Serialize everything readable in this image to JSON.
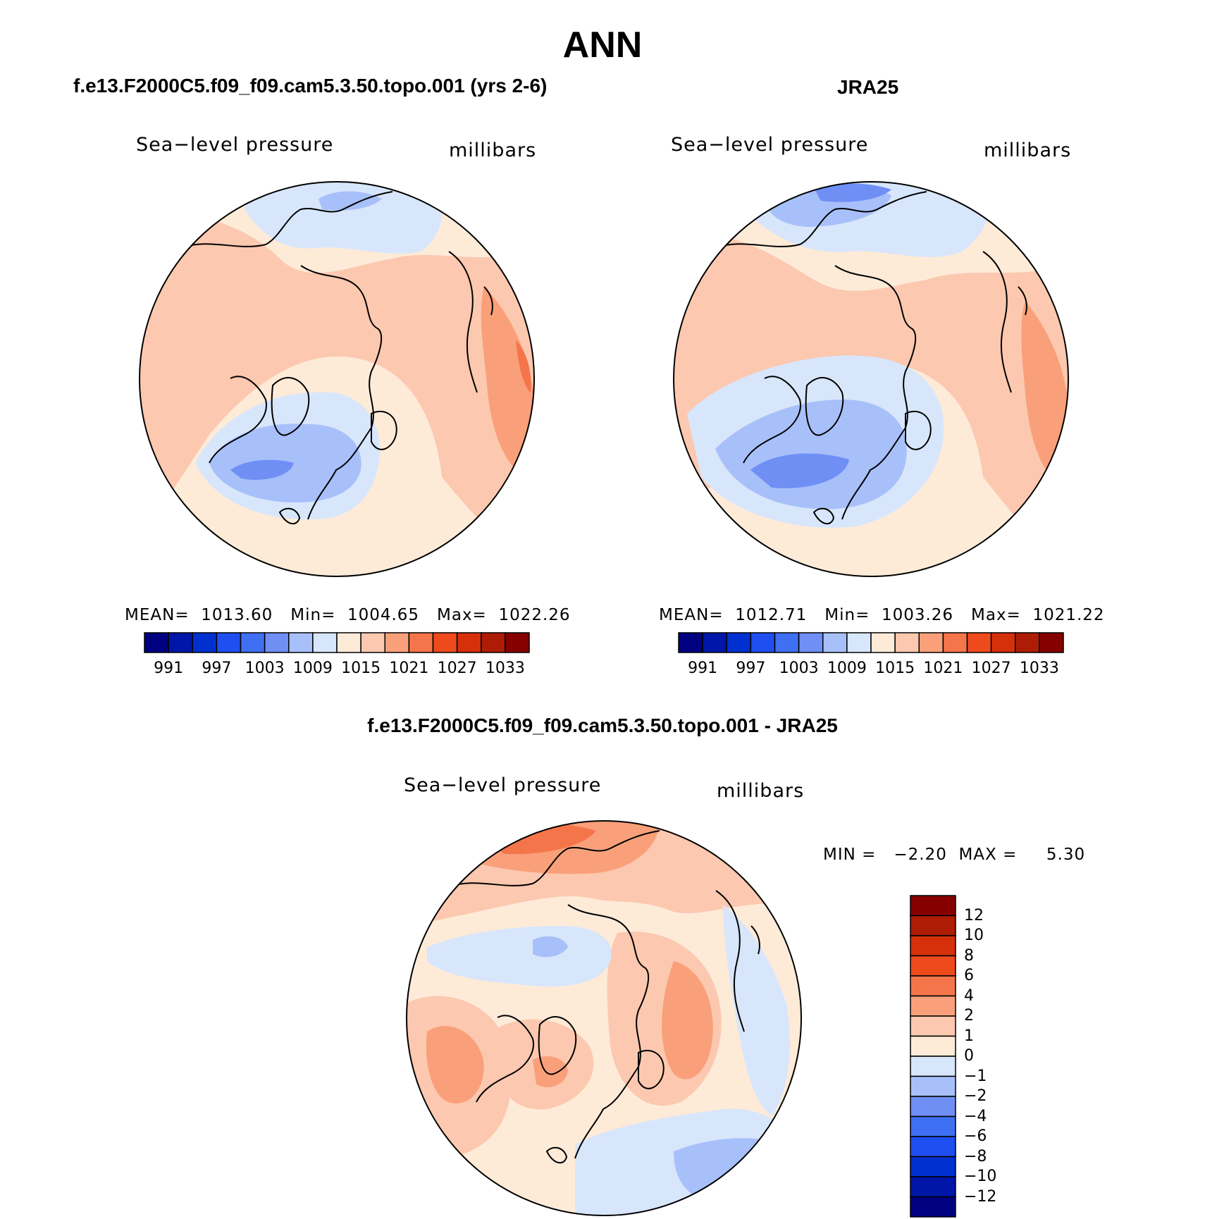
{
  "season": "ANN",
  "panels": {
    "model": {
      "title": "f.e13.F2000C5.f09_f09.cam5.3.50.topo.001 (yrs 2-6)",
      "variable": "Sea−level pressure",
      "units": "millibars",
      "stats": "MEAN=  1013.60   Min=  1004.65   Max=  1022.26"
    },
    "obs": {
      "title": "JRA25",
      "variable": "Sea−level pressure",
      "units": "millibars",
      "stats": "MEAN=  1012.71   Min=  1003.26   Max=  1021.22"
    },
    "diff": {
      "title": "f.e13.F2000C5.f09_f09.cam5.3.50.topo.001 - JRA25",
      "variable": "Sea−level pressure",
      "units": "millibars",
      "stats": "MIN =   −2.20  MAX =     5.30"
    }
  },
  "colorbar_abs": {
    "colors": [
      "#000080",
      "#0016a8",
      "#0030d0",
      "#1f4ff0",
      "#3f6ff2",
      "#6f8ff5",
      "#a8c0fa",
      "#d8e6fb",
      "#fdebd8",
      "#fcc8b0",
      "#f9a07a",
      "#f5754a",
      "#ee4a1c",
      "#d6300a",
      "#ae1c06",
      "#860000"
    ],
    "labels": [
      "991",
      "997",
      "1003",
      "1009",
      "1015",
      "1021",
      "1027",
      "1033"
    ]
  },
  "colorbar_diff": {
    "colors": [
      "#860000",
      "#ae1c06",
      "#d6300a",
      "#ee4a1c",
      "#f5754a",
      "#f9a07a",
      "#fcc8b0",
      "#fdebd8",
      "#d8e6fb",
      "#a8c0fa",
      "#6f8ff5",
      "#3f6ff2",
      "#1f4ff0",
      "#0030d0",
      "#0016a8",
      "#000080"
    ],
    "labels": [
      "12",
      "10",
      "8",
      "6",
      "4",
      "2",
      "1",
      "0",
      "−1",
      "−2",
      "−4",
      "−6",
      "−8",
      "−10",
      "−12"
    ]
  },
  "map_colors": {
    "land_outline": "#000000",
    "near_zero_pos": "#fdebd8",
    "light_pos": "#fcc8b0",
    "mid_pos": "#f9a07a",
    "strong_pos": "#f5754a",
    "near_zero_neg": "#d8e6fb",
    "light_neg": "#a8c0fa",
    "mid_neg": "#6f8ff5"
  }
}
